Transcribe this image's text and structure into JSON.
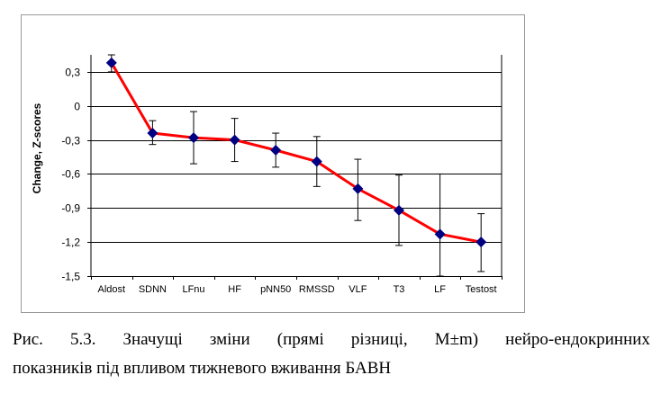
{
  "chart_data": {
    "type": "line",
    "categories": [
      "Aldost",
      "SDNN",
      "LFnu",
      "HF",
      "pNN50",
      "RMSSD",
      "VLF",
      "T3",
      "LF",
      "Testost"
    ],
    "values": [
      0.38,
      -0.24,
      -0.28,
      -0.3,
      -0.39,
      -0.49,
      -0.73,
      -0.92,
      -1.13,
      -1.2
    ],
    "error_low": [
      0.3,
      -0.34,
      -0.51,
      -0.49,
      -0.54,
      -0.71,
      -1.01,
      -1.23,
      -1.5,
      -1.46
    ],
    "error_high": [
      0.45,
      -0.13,
      -0.05,
      -0.11,
      -0.24,
      -0.27,
      -0.47,
      -0.61,
      -0.6,
      -0.95
    ],
    "ylabel": "Change, Z-scores",
    "xlabel": "",
    "ylim": [
      -1.5,
      0.45
    ],
    "yticks": [
      0.3,
      0,
      -0.3,
      -0.6,
      -0.9,
      -1.2,
      -1.5
    ],
    "ytick_labels": [
      "0,3",
      "0",
      "-0,3",
      "-0,6",
      "-0,9",
      "-1,2",
      "-1,5"
    ],
    "grid": true,
    "line_color": "#ff0000",
    "marker_color": "#000080"
  },
  "caption": {
    "line1_words": [
      "Рис.",
      "5.3.",
      "Значущі",
      "зміни",
      "(прямі",
      "різниці,",
      "M±m)",
      "нейро-ендокринних"
    ],
    "line2": "показників під впливом тижневого вживання БАВН"
  }
}
